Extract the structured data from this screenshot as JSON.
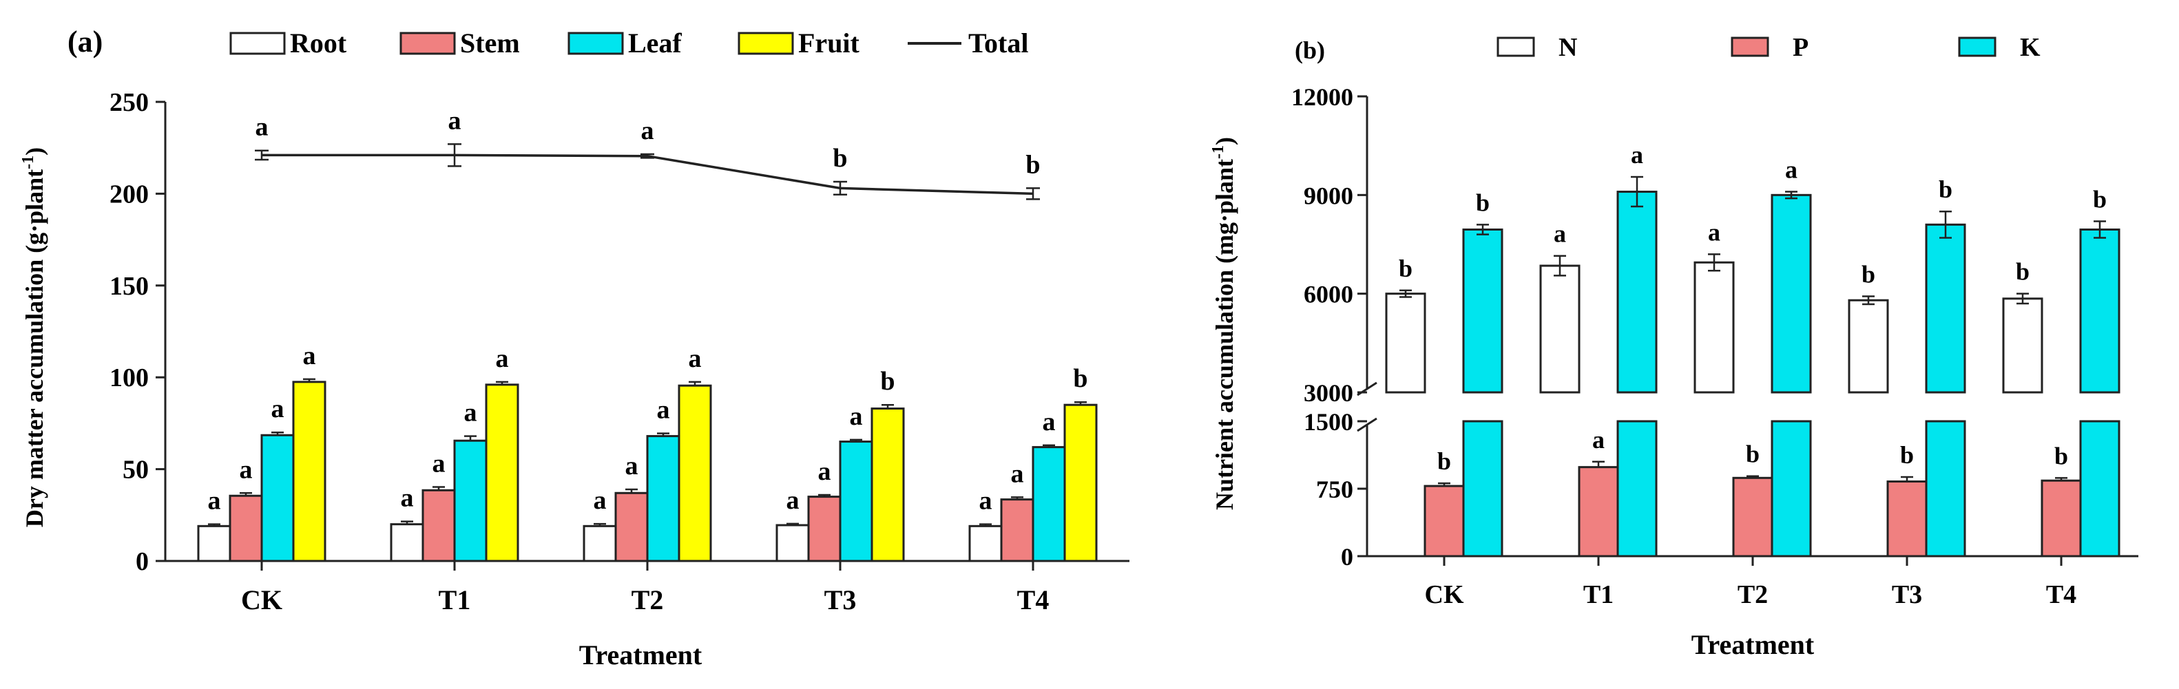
{
  "chart_data": [
    {
      "panel_label": "(a)",
      "type": "bar",
      "categories": [
        "CK",
        "T1",
        "T2",
        "T3",
        "T4"
      ],
      "xlabel": "Treatment",
      "ylabel": "Dry matter accumulation (g·plant",
      "ylabel_sup": "-1",
      "ylabel_close": ")",
      "ylim": [
        0,
        250
      ],
      "yticks": [
        0,
        50,
        100,
        150,
        200,
        250
      ],
      "series": [
        {
          "name": "Root",
          "color": "#ffffff",
          "values": [
            19,
            20,
            19,
            19.5,
            19
          ],
          "errors": [
            1,
            1.5,
            1.2,
            0.8,
            1
          ],
          "letters": [
            "a",
            "a",
            "a",
            "a",
            "a"
          ]
        },
        {
          "name": "Stem",
          "color": "#f08080",
          "values": [
            35.5,
            38.5,
            37,
            35,
            33.5
          ],
          "errors": [
            1.5,
            1.8,
            2,
            1,
            1.2
          ],
          "letters": [
            "a",
            "a",
            "a",
            "a",
            "a"
          ]
        },
        {
          "name": "Leaf",
          "color": "#00e5ee",
          "values": [
            68.5,
            65.5,
            68,
            65,
            62
          ],
          "errors": [
            1.5,
            2.5,
            1.5,
            1,
            1
          ],
          "letters": [
            "a",
            "a",
            "a",
            "a",
            "a"
          ]
        },
        {
          "name": "Fruit",
          "color": "#ffff00",
          "values": [
            97.5,
            96,
            95.5,
            83,
            85
          ],
          "errors": [
            1.5,
            1.5,
            2,
            2,
            1.5
          ],
          "letters": [
            "a",
            "a",
            "a",
            "b",
            "b"
          ]
        }
      ],
      "line": {
        "name": "Total",
        "values": [
          221,
          221,
          220.5,
          203,
          200
        ],
        "errors": [
          2.5,
          6,
          1,
          3.5,
          3
        ],
        "letters": [
          "a",
          "a",
          "a",
          "b",
          "b"
        ]
      },
      "legend": [
        "Root",
        "Stem",
        "Leaf",
        "Fruit",
        "Total"
      ]
    },
    {
      "panel_label": "(b)",
      "type": "bar",
      "categories": [
        "CK",
        "T1",
        "T2",
        "T3",
        "T4"
      ],
      "xlabel": "Treatment",
      "ylabel": "Nutrient accumulation (mg·plant",
      "ylabel_sup": "-1",
      "ylabel_close": ")",
      "broken_axis": {
        "upper": {
          "ylim": [
            3000,
            12000
          ],
          "yticks": [
            3000,
            6000,
            9000,
            12000
          ]
        },
        "lower": {
          "ylim": [
            0,
            1500
          ],
          "yticks": [
            0,
            750,
            1500
          ]
        }
      },
      "series": [
        {
          "name": "N",
          "color": "#ffffff",
          "values": [
            6000,
            6850,
            6950,
            5800,
            5850
          ],
          "errors": [
            100,
            300,
            250,
            120,
            150
          ],
          "letters": [
            "b",
            "a",
            "a",
            "b",
            "b"
          ]
        },
        {
          "name": "P",
          "color": "#f08080",
          "values": [
            780,
            990,
            870,
            830,
            840
          ],
          "errors": [
            30,
            60,
            20,
            50,
            30
          ],
          "letters": [
            "b",
            "a",
            "b",
            "b",
            "b"
          ]
        },
        {
          "name": "K",
          "color": "#00e5ee",
          "values": [
            7950,
            9100,
            9000,
            8100,
            7950
          ],
          "errors": [
            150,
            450,
            100,
            400,
            250
          ],
          "letters": [
            "b",
            "a",
            "a",
            "b",
            "b"
          ]
        }
      ],
      "legend": [
        "N",
        "P",
        "K"
      ]
    }
  ]
}
